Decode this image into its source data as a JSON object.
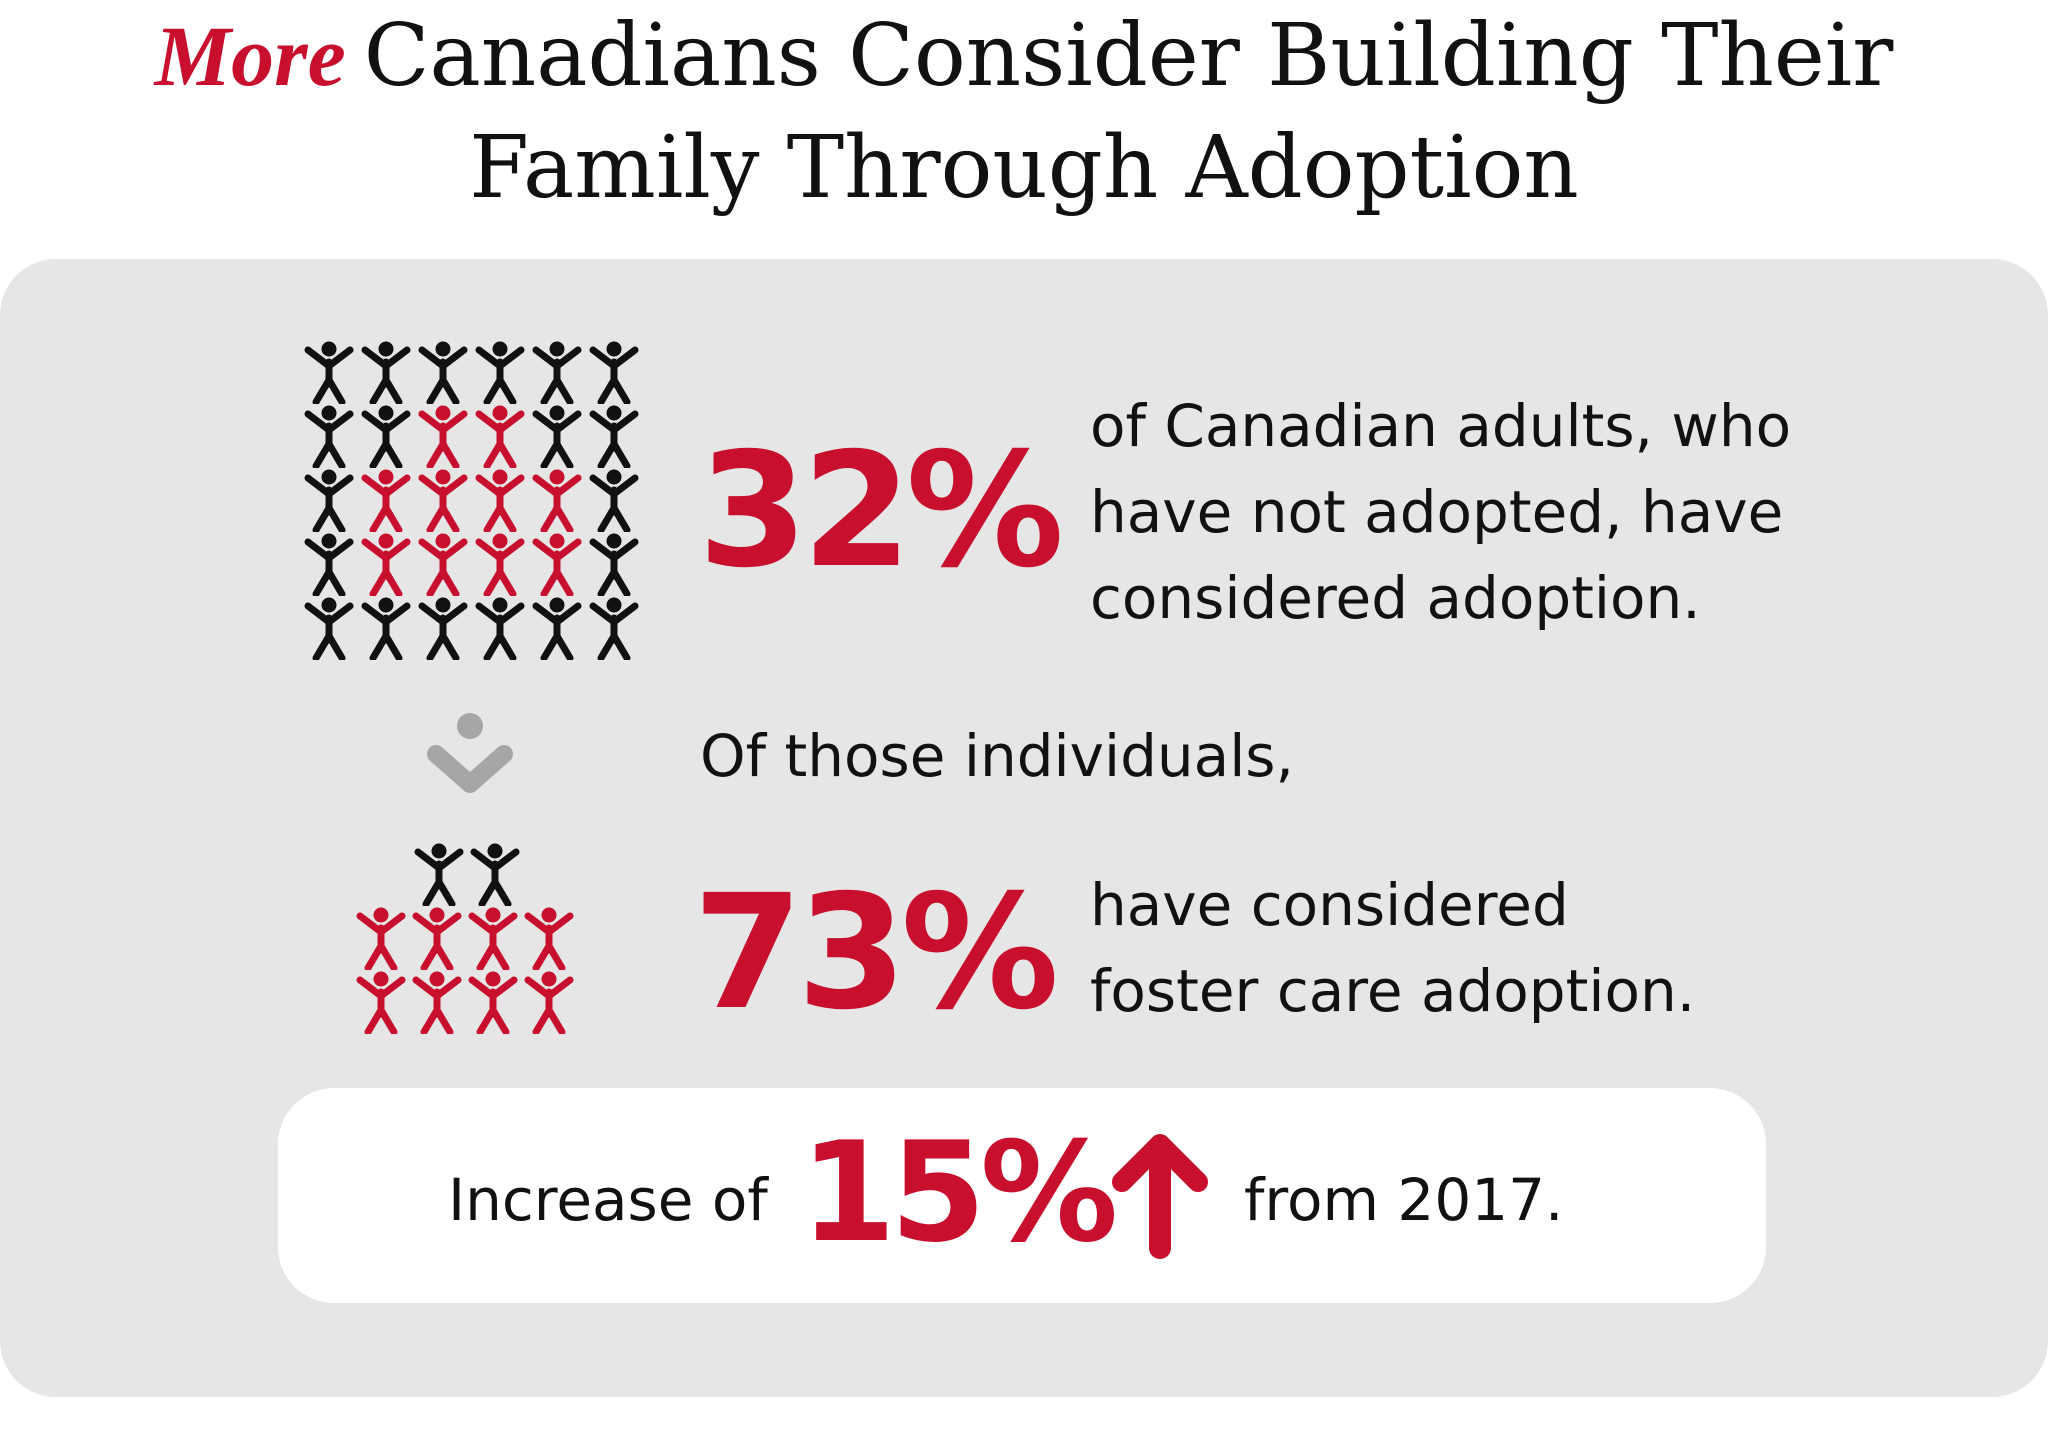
{
  "title": {
    "lead": "More",
    "rest": "Canadians Consider Building Their",
    "line2": "Family Through Adoption"
  },
  "stat1": {
    "value": "32%",
    "lines": [
      "of Canadian adults, who",
      "have not adopted, have",
      "considered adoption."
    ]
  },
  "transition": "Of those individuals,",
  "stat2": {
    "value": "73%",
    "lines": [
      "have considered",
      "foster care adoption."
    ]
  },
  "increase": {
    "prefix": "Increase of",
    "value": "15%",
    "suffix": "from 2017."
  },
  "icons": {
    "person": "person-arms-up-icon",
    "chevron": "chevron-down-icon",
    "arrow": "arrow-up-icon"
  },
  "colors": {
    "accent": "#c8102e",
    "dark": "#111111",
    "panel": "#e6e6e6",
    "chevron": "#a6a6a6"
  },
  "pictogram_top": {
    "rows": [
      [
        "black",
        "black",
        "black",
        "black",
        "black",
        "black"
      ],
      [
        "black",
        "black",
        "red",
        "red",
        "black",
        "black"
      ],
      [
        "black",
        "red",
        "red",
        "red",
        "red",
        "black"
      ],
      [
        "black",
        "red",
        "red",
        "red",
        "red",
        "black"
      ],
      [
        "black",
        "black",
        "black",
        "black",
        "black",
        "black"
      ]
    ]
  },
  "pictogram_bottom": {
    "rows": [
      [
        "black",
        "black"
      ],
      [
        "red",
        "red",
        "red",
        "red"
      ],
      [
        "red",
        "red",
        "red",
        "red"
      ]
    ]
  }
}
